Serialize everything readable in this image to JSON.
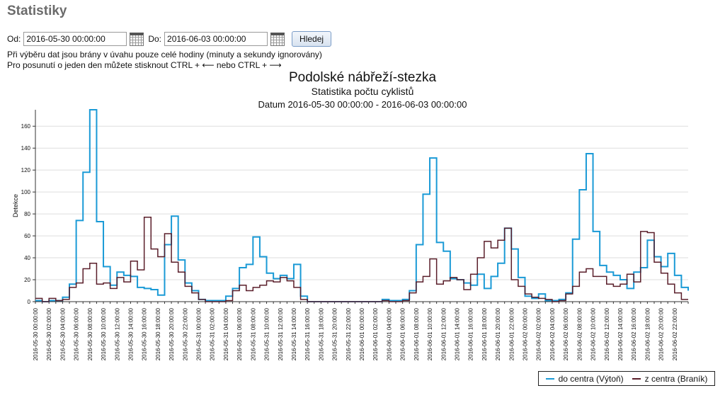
{
  "page": {
    "title": "Statistiky"
  },
  "filter": {
    "from_label": "Od:",
    "from_value": "2016-05-30 00:00:00",
    "to_label": "Do:",
    "to_value": "2016-06-03 00:00:00",
    "calendar_icon": "calendar-icon",
    "search_label": "Hledej"
  },
  "notes": {
    "line1": "Při výběru dat jsou brány v úvahu pouze celé hodiny (minuty a sekundy ignorovány)",
    "line2": "Pro posunutí o jeden den můžete stisknout CTRL + ⟵ nebo CTRL + ⟶"
  },
  "chart_data": {
    "type": "line",
    "step": true,
    "title": "Podolské nábřeží-stezka",
    "subtitle": "Statistika počtu cyklistů",
    "range_text": "Datum 2016-05-30 00:00:00 - 2016-06-03 00:00:00",
    "xlabel": "",
    "ylabel": "Detekce",
    "ylim": [
      0,
      175
    ],
    "yticks": [
      0,
      20,
      40,
      60,
      80,
      100,
      120,
      140,
      160
    ],
    "grid": true,
    "legend_position": "bottom-right",
    "x": [
      "2016-05-30 00:00:00",
      "2016-05-30 01:00:00",
      "2016-05-30 02:00:00",
      "2016-05-30 03:00:00",
      "2016-05-30 04:00:00",
      "2016-05-30 05:00:00",
      "2016-05-30 06:00:00",
      "2016-05-30 07:00:00",
      "2016-05-30 08:00:00",
      "2016-05-30 09:00:00",
      "2016-05-30 10:00:00",
      "2016-05-30 11:00:00",
      "2016-05-30 12:00:00",
      "2016-05-30 13:00:00",
      "2016-05-30 14:00:00",
      "2016-05-30 15:00:00",
      "2016-05-30 16:00:00",
      "2016-05-30 17:00:00",
      "2016-05-30 18:00:00",
      "2016-05-30 19:00:00",
      "2016-05-30 20:00:00",
      "2016-05-30 21:00:00",
      "2016-05-30 22:00:00",
      "2016-05-30 23:00:00",
      "2016-05-31 00:00:00",
      "2016-05-31 01:00:00",
      "2016-05-31 02:00:00",
      "2016-05-31 03:00:00",
      "2016-05-31 04:00:00",
      "2016-05-31 05:00:00",
      "2016-05-31 06:00:00",
      "2016-05-31 07:00:00",
      "2016-05-31 08:00:00",
      "2016-05-31 09:00:00",
      "2016-05-31 10:00:00",
      "2016-05-31 11:00:00",
      "2016-05-31 12:00:00",
      "2016-05-31 13:00:00",
      "2016-05-31 14:00:00",
      "2016-05-31 15:00:00",
      "2016-05-31 16:00:00",
      "2016-05-31 17:00:00",
      "2016-05-31 18:00:00",
      "2016-05-31 19:00:00",
      "2016-05-31 20:00:00",
      "2016-05-31 21:00:00",
      "2016-05-31 22:00:00",
      "2016-05-31 23:00:00",
      "2016-06-01 00:00:00",
      "2016-06-01 01:00:00",
      "2016-06-01 02:00:00",
      "2016-06-01 03:00:00",
      "2016-06-01 04:00:00",
      "2016-06-01 05:00:00",
      "2016-06-01 06:00:00",
      "2016-06-01 07:00:00",
      "2016-06-01 08:00:00",
      "2016-06-01 09:00:00",
      "2016-06-01 10:00:00",
      "2016-06-01 11:00:00",
      "2016-06-01 12:00:00",
      "2016-06-01 13:00:00",
      "2016-06-01 14:00:00",
      "2016-06-01 15:00:00",
      "2016-06-01 16:00:00",
      "2016-06-01 17:00:00",
      "2016-06-01 18:00:00",
      "2016-06-01 19:00:00",
      "2016-06-01 20:00:00",
      "2016-06-01 21:00:00",
      "2016-06-01 22:00:00",
      "2016-06-01 23:00:00",
      "2016-06-02 00:00:00",
      "2016-06-02 01:00:00",
      "2016-06-02 02:00:00",
      "2016-06-02 03:00:00",
      "2016-06-02 04:00:00",
      "2016-06-02 05:00:00",
      "2016-06-02 06:00:00",
      "2016-06-02 07:00:00",
      "2016-06-02 08:00:00",
      "2016-06-02 09:00:00",
      "2016-06-02 10:00:00",
      "2016-06-02 11:00:00",
      "2016-06-02 12:00:00",
      "2016-06-02 13:00:00",
      "2016-06-02 14:00:00",
      "2016-06-02 15:00:00",
      "2016-06-02 16:00:00",
      "2016-06-02 17:00:00",
      "2016-06-02 18:00:00",
      "2016-06-02 19:00:00",
      "2016-06-02 20:00:00",
      "2016-06-02 21:00:00",
      "2016-06-02 22:00:00",
      "2016-06-02 23:00:00",
      "2016-06-03 00:00:00"
    ],
    "x_tick_every": 2,
    "series": [
      {
        "name": "do centra (Výtoň)",
        "color": "#1a9ad6",
        "values": [
          1,
          0,
          1,
          1,
          4,
          16,
          74,
          118,
          175,
          73,
          32,
          15,
          27,
          24,
          23,
          13,
          12,
          11,
          6,
          52,
          78,
          38,
          17,
          10,
          2,
          1,
          1,
          1,
          5,
          12,
          31,
          34,
          59,
          41,
          26,
          21,
          24,
          21,
          34,
          5,
          0,
          0,
          0,
          0,
          0,
          0,
          0,
          0,
          0,
          0,
          0,
          2,
          1,
          1,
          2,
          10,
          52,
          98,
          131,
          54,
          46,
          21,
          20,
          17,
          15,
          25,
          12,
          23,
          35,
          67,
          48,
          22,
          5,
          3,
          7,
          1,
          1,
          2,
          8,
          57,
          102,
          135,
          64,
          33,
          27,
          24,
          20,
          12,
          27,
          31,
          56,
          41,
          32,
          44,
          24,
          13,
          10
        ]
      },
      {
        "name": "z centra (Braník)",
        "color": "#5a1e2a",
        "values": [
          3,
          0,
          3,
          1,
          2,
          13,
          17,
          30,
          35,
          16,
          17,
          12,
          22,
          18,
          37,
          29,
          77,
          48,
          41,
          62,
          36,
          27,
          14,
          8,
          2,
          0,
          0,
          0,
          1,
          10,
          15,
          10,
          13,
          15,
          19,
          18,
          22,
          19,
          13,
          2,
          0,
          0,
          0,
          0,
          0,
          0,
          0,
          0,
          0,
          0,
          0,
          1,
          0,
          0,
          1,
          8,
          18,
          23,
          39,
          16,
          19,
          22,
          20,
          11,
          25,
          40,
          55,
          49,
          56,
          67,
          20,
          14,
          7,
          4,
          3,
          2,
          0,
          1,
          7,
          14,
          27,
          30,
          23,
          23,
          16,
          14,
          16,
          25,
          18,
          64,
          63,
          36,
          26,
          16,
          8,
          2,
          2
        ]
      }
    ]
  }
}
